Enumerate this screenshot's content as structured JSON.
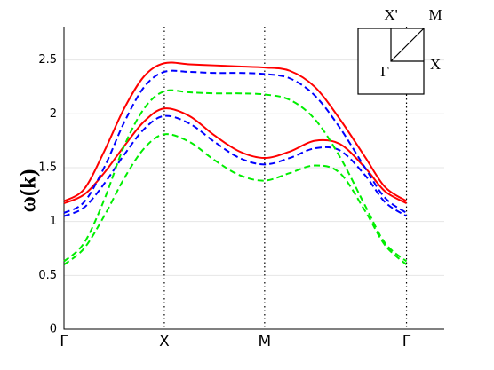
{
  "chart_data": {
    "type": "line",
    "ylabel": "ω(k)",
    "x": [
      0,
      0.2,
      0.4,
      0.6,
      0.8,
      1,
      1.25,
      1.5,
      1.75,
      2,
      2.25,
      2.5,
      2.75,
      3,
      3.2,
      3.414
    ],
    "xlim": [
      0,
      3.79
    ],
    "ylim": [
      0,
      2.81
    ],
    "xticks": [
      {
        "value": 0,
        "label": "Γ"
      },
      {
        "value": 1,
        "label": "X"
      },
      {
        "value": 2,
        "label": "M"
      },
      {
        "value": 3.414,
        "label": "Γ"
      }
    ],
    "yticks": [
      0,
      0.5,
      1,
      1.5,
      2,
      2.5
    ],
    "grid": true,
    "series": [
      {
        "color": "#ff0000",
        "dash": false,
        "values": [
          1.19,
          1.3,
          1.65,
          2.05,
          2.35,
          2.47,
          2.46,
          2.45,
          2.44,
          2.43,
          2.4,
          2.25,
          1.95,
          1.6,
          1.32,
          1.19
        ]
      },
      {
        "color": "#ff0000",
        "dash": false,
        "values": [
          1.17,
          1.25,
          1.45,
          1.7,
          1.93,
          2.05,
          1.98,
          1.8,
          1.65,
          1.59,
          1.65,
          1.75,
          1.72,
          1.5,
          1.28,
          1.17
        ]
      },
      {
        "color": "#0000ff",
        "dash": true,
        "values": [
          1.08,
          1.18,
          1.5,
          1.92,
          2.25,
          2.39,
          2.39,
          2.38,
          2.38,
          2.37,
          2.33,
          2.17,
          1.87,
          1.5,
          1.22,
          1.08
        ]
      },
      {
        "color": "#0000ff",
        "dash": true,
        "values": [
          1.05,
          1.13,
          1.35,
          1.62,
          1.86,
          1.98,
          1.91,
          1.74,
          1.59,
          1.53,
          1.59,
          1.68,
          1.66,
          1.43,
          1.18,
          1.05
        ]
      },
      {
        "color": "#00ee00",
        "dash": true,
        "values": [
          0.63,
          0.8,
          1.2,
          1.7,
          2.05,
          2.21,
          2.2,
          2.19,
          2.19,
          2.18,
          2.13,
          1.95,
          1.6,
          1.15,
          0.8,
          0.63
        ]
      },
      {
        "color": "#00ee00",
        "dash": true,
        "values": [
          0.6,
          0.75,
          1.05,
          1.4,
          1.68,
          1.81,
          1.74,
          1.57,
          1.43,
          1.38,
          1.45,
          1.52,
          1.45,
          1.1,
          0.78,
          0.6
        ]
      }
    ],
    "inset_labels": [
      "X'",
      "M",
      "Γ",
      "X"
    ]
  }
}
